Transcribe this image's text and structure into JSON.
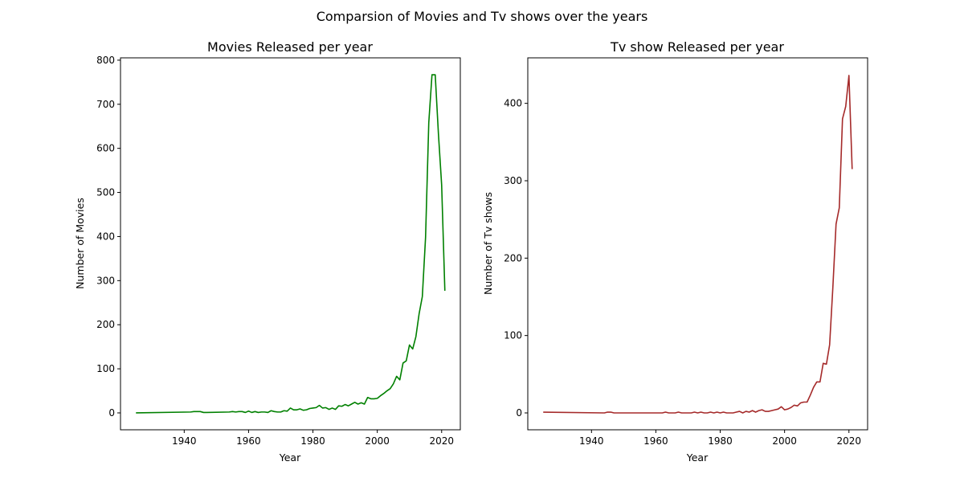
{
  "figure": {
    "suptitle": "Comparsion of Movies and Tv shows over the years"
  },
  "chart_data": [
    {
      "type": "line",
      "title": "Movies Released per year",
      "xlabel": "Year",
      "ylabel": "Number of Movies",
      "xlim": [
        1920.2,
        2025.8
      ],
      "ylim": [
        -38.3,
        805.3
      ],
      "xticks": [
        1940,
        1960,
        1980,
        2000,
        2020
      ],
      "yticks": [
        0,
        100,
        200,
        300,
        400,
        500,
        600,
        700,
        800
      ],
      "grid": false,
      "legend": "none",
      "series": [
        {
          "color": "#008000",
          "x": [
            1925,
            1942,
            1943,
            1944,
            1945,
            1946,
            1947,
            1954,
            1955,
            1956,
            1957,
            1958,
            1959,
            1960,
            1961,
            1962,
            1963,
            1964,
            1965,
            1966,
            1967,
            1968,
            1969,
            1970,
            1971,
            1972,
            1973,
            1974,
            1975,
            1976,
            1977,
            1978,
            1979,
            1980,
            1981,
            1982,
            1983,
            1984,
            1985,
            1986,
            1987,
            1988,
            1989,
            1990,
            1991,
            1992,
            1993,
            1994,
            1995,
            1996,
            1997,
            1998,
            1999,
            2000,
            2001,
            2002,
            2003,
            2004,
            2005,
            2006,
            2007,
            2008,
            2009,
            2010,
            2011,
            2012,
            2013,
            2014,
            2015,
            2016,
            2017,
            2018,
            2019,
            2020,
            2021
          ],
          "y": [
            0,
            2,
            3,
            3,
            3,
            1,
            1,
            2,
            3,
            2,
            3,
            3,
            1,
            4,
            1,
            3,
            1,
            2,
            2,
            1,
            5,
            3,
            2,
            2,
            5,
            4,
            11,
            7,
            7,
            9,
            6,
            7,
            10,
            11,
            12,
            17,
            11,
            12,
            8,
            11,
            8,
            16,
            15,
            19,
            16,
            20,
            24,
            20,
            23,
            20,
            35,
            32,
            32,
            33,
            39,
            44,
            50,
            55,
            66,
            83,
            75,
            113,
            118,
            154,
            145,
            173,
            225,
            264,
            398,
            658,
            767,
            767,
            633,
            517,
            277
          ]
        }
      ]
    },
    {
      "type": "line",
      "title": "Tv show Released per year",
      "xlabel": "Year",
      "ylabel": "Number of Tv shows",
      "xlim": [
        1920.2,
        2025.8
      ],
      "ylim": [
        -21.8,
        458.8
      ],
      "xticks": [
        1940,
        1960,
        1980,
        2000,
        2020
      ],
      "yticks": [
        0,
        100,
        200,
        300,
        400
      ],
      "grid": false,
      "legend": "none",
      "series": [
        {
          "color": "#a52a2a",
          "x": [
            1925,
            1944,
            1945,
            1946,
            1947,
            1962,
            1963,
            1964,
            1965,
            1966,
            1967,
            1968,
            1969,
            1970,
            1971,
            1972,
            1973,
            1974,
            1975,
            1976,
            1977,
            1978,
            1979,
            1980,
            1981,
            1982,
            1983,
            1984,
            1985,
            1986,
            1987,
            1988,
            1989,
            1990,
            1991,
            1992,
            1993,
            1994,
            1995,
            1996,
            1997,
            1998,
            1999,
            2000,
            2001,
            2002,
            2003,
            2004,
            2005,
            2006,
            2007,
            2008,
            2009,
            2010,
            2011,
            2012,
            2013,
            2014,
            2015,
            2016,
            2017,
            2018,
            2019,
            2020,
            2021
          ],
          "y": [
            1,
            0,
            1,
            1,
            0,
            0,
            1,
            0,
            0,
            0,
            1,
            0,
            0,
            0,
            0,
            1,
            0,
            1,
            0,
            0,
            1,
            0,
            1,
            0,
            1,
            0,
            0,
            0,
            1,
            2,
            0,
            2,
            1,
            3,
            1,
            3,
            4,
            2,
            2,
            3,
            4,
            5,
            8,
            4,
            5,
            7,
            10,
            9,
            13,
            14,
            14,
            23,
            33,
            40,
            40,
            64,
            63,
            88,
            162,
            244,
            265,
            380,
            396,
            436,
            315
          ]
        }
      ]
    }
  ]
}
